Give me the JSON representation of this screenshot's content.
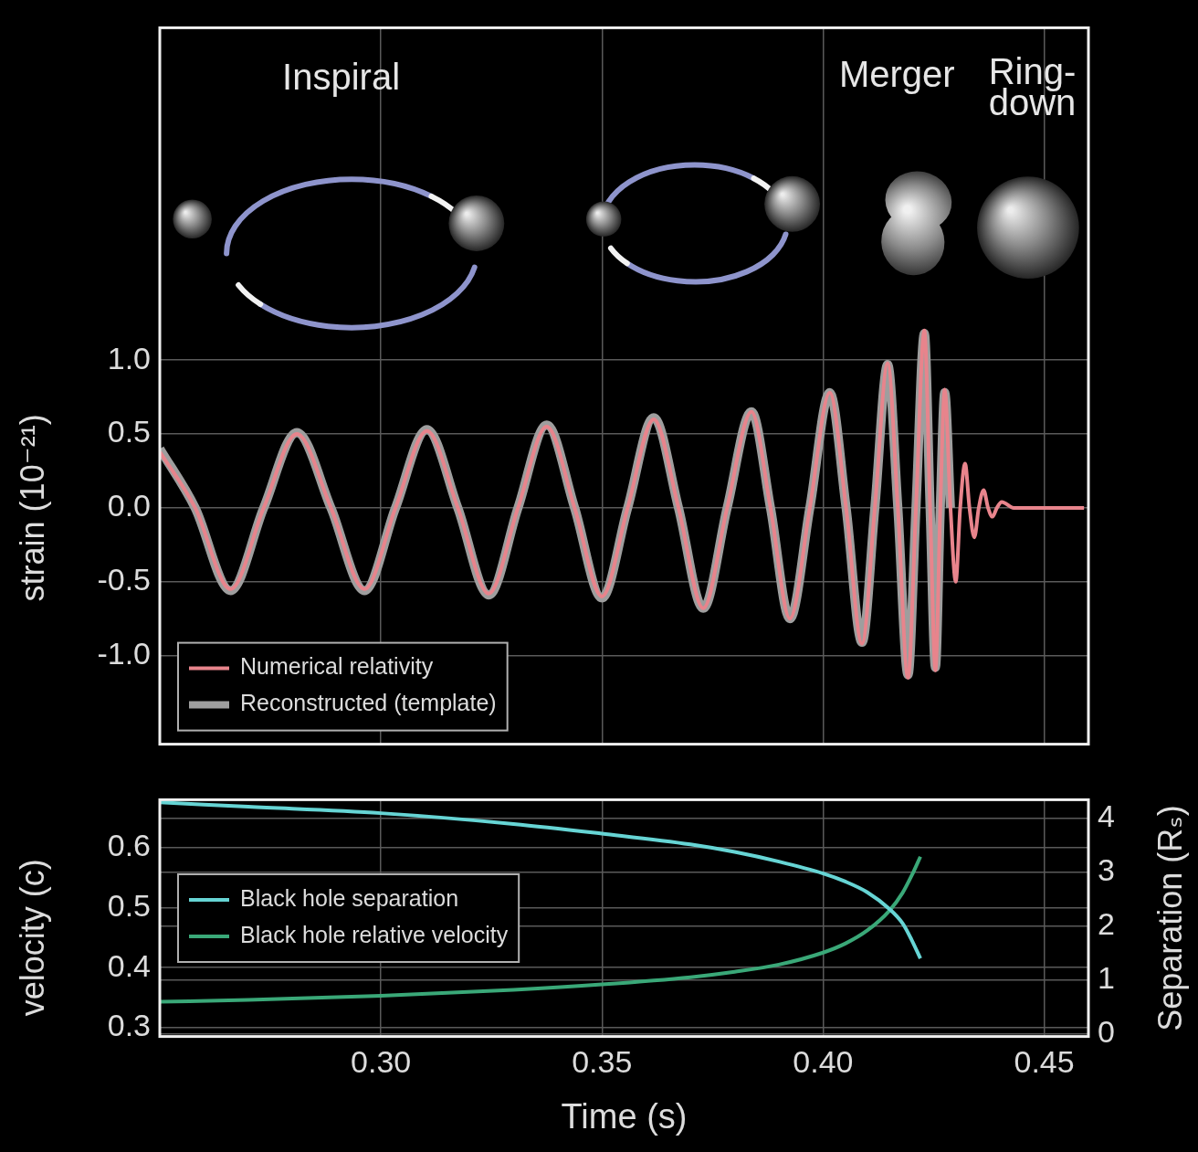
{
  "chart_data": [
    {
      "type": "line",
      "y_label": "strain (10⁻²¹)",
      "xlim": [
        0.25,
        0.46
      ],
      "xticks": [
        {
          "value": 0.3,
          "label": "0.30"
        },
        0.35,
        {
          "value": 0.4,
          "label": "0.40"
        },
        0.45
      ],
      "ylim": [
        -1.6,
        3.25
      ],
      "yticks": [
        {
          "value": -1,
          "label": "-1.0"
        },
        -0.5,
        {
          "value": 0,
          "label": "0.0"
        },
        0.5,
        {
          "value": 1,
          "label": "1.0"
        }
      ],
      "grid": true,
      "legend": "lower left",
      "tick_labels": "y",
      "annotations": [
        {
          "text": "Inspiral",
          "x": 0.291,
          "y": 2.9
        },
        {
          "text": "Merger",
          "x": 0.4167,
          "y": 2.92
        },
        {
          "text": "Ring-\ndown",
          "x": 0.4473,
          "y": 2.94
        }
      ],
      "series": [
        {
          "name": "Numerical relativity",
          "color": "#e8848c",
          "x": [
            0.25,
            0.258,
            0.266,
            0.2735,
            0.281,
            0.2887,
            0.2963,
            0.3033,
            0.3104,
            0.3174,
            0.3244,
            0.331,
            0.3375,
            0.3438,
            0.35,
            0.3558,
            0.3617,
            0.3673,
            0.3729,
            0.3783,
            0.3838,
            0.3881,
            0.3925,
            0.397,
            0.4015,
            0.4052,
            0.4088,
            0.4117,
            0.4146,
            0.4169,
            0.4192,
            0.421,
            0.4229,
            0.4242,
            0.4254,
            0.4265,
            0.4275,
            0.4288,
            0.43,
            0.431,
            0.4321,
            0.4331,
            0.4342,
            0.4352,
            0.4363,
            0.4373,
            0.4383,
            0.4393,
            0.4404,
            0.4431,
            0.459
          ],
          "values": [
            0.38,
            0,
            -0.55,
            0,
            0.5,
            0,
            -0.55,
            0,
            0.52,
            0,
            -0.58,
            0,
            0.55,
            0,
            -0.6,
            0,
            0.6,
            0,
            -0.68,
            0,
            0.65,
            0,
            -0.75,
            0,
            0.78,
            0,
            -0.92,
            0,
            0.98,
            0,
            -1.15,
            0,
            1.2,
            0,
            -1.1,
            0,
            0.8,
            0,
            -0.5,
            0,
            0.3,
            0,
            -0.2,
            0,
            0.12,
            0,
            -0.06,
            0,
            0.04,
            0,
            0
          ]
        },
        {
          "name": "Reconstructed (template)",
          "color": "#9e9e9e",
          "x": [
            0.25,
            0.258,
            0.266,
            0.2735,
            0.281,
            0.2887,
            0.2963,
            0.3033,
            0.3104,
            0.3174,
            0.3244,
            0.331,
            0.3375,
            0.3438,
            0.35,
            0.3558,
            0.3617,
            0.3673,
            0.3729,
            0.3783,
            0.3838,
            0.3881,
            0.3925,
            0.397,
            0.4015,
            0.4052,
            0.4088,
            0.4117,
            0.4146,
            0.4169,
            0.4192,
            0.421,
            0.4229,
            0.4242,
            0.4254,
            0.4265,
            0.4275,
            0.4288
          ],
          "values": [
            0.4,
            0,
            -0.56,
            0,
            0.51,
            0,
            -0.56,
            0,
            0.53,
            0,
            -0.59,
            0,
            0.56,
            0,
            -0.61,
            0,
            0.61,
            0,
            -0.68,
            0,
            0.65,
            0,
            -0.75,
            0,
            0.78,
            0,
            -0.91,
            0,
            0.97,
            0,
            -1.13,
            0,
            1.18,
            0,
            -1.08,
            0,
            0.78,
            0
          ]
        }
      ]
    },
    {
      "type": "line",
      "x_label": "Time (s)",
      "y_label": "velocity (c)",
      "y2_label": "Separation (Rₛ)",
      "xlim": [
        0.25,
        0.46
      ],
      "xticks": [
        {
          "value": 0.3,
          "label": "0.30"
        },
        0.35,
        {
          "value": 0.4,
          "label": "0.40"
        },
        0.45
      ],
      "ylim": [
        0.285,
        0.68
      ],
      "yticks": [
        0.3,
        0.4,
        0.5,
        0.6
      ],
      "y2lim": [
        -0.05,
        4.35
      ],
      "y2ticks": [
        0,
        1,
        2,
        3,
        4
      ],
      "grid": true,
      "legend": "left",
      "series": [
        {
          "name": "Black hole separation",
          "color": "#66d4d4",
          "axis": "y2",
          "x": [
            0.25,
            0.27,
            0.3,
            0.33,
            0.35,
            0.37,
            0.38,
            0.39,
            0.4,
            0.405,
            0.41,
            0.415,
            0.418,
            0.42,
            0.422
          ],
          "values": [
            4.3,
            4.22,
            4.1,
            3.9,
            3.72,
            3.52,
            3.38,
            3.2,
            2.98,
            2.83,
            2.63,
            2.32,
            2.05,
            1.75,
            1.4
          ]
        },
        {
          "name": "Black hole relative velocity",
          "color": "#3aa878",
          "x": [
            0.25,
            0.27,
            0.3,
            0.33,
            0.35,
            0.37,
            0.38,
            0.39,
            0.4,
            0.405,
            0.41,
            0.415,
            0.418,
            0.42,
            0.422
          ],
          "values": [
            0.343,
            0.346,
            0.353,
            0.363,
            0.372,
            0.384,
            0.393,
            0.405,
            0.425,
            0.44,
            0.462,
            0.495,
            0.525,
            0.553,
            0.585
          ]
        }
      ]
    }
  ]
}
